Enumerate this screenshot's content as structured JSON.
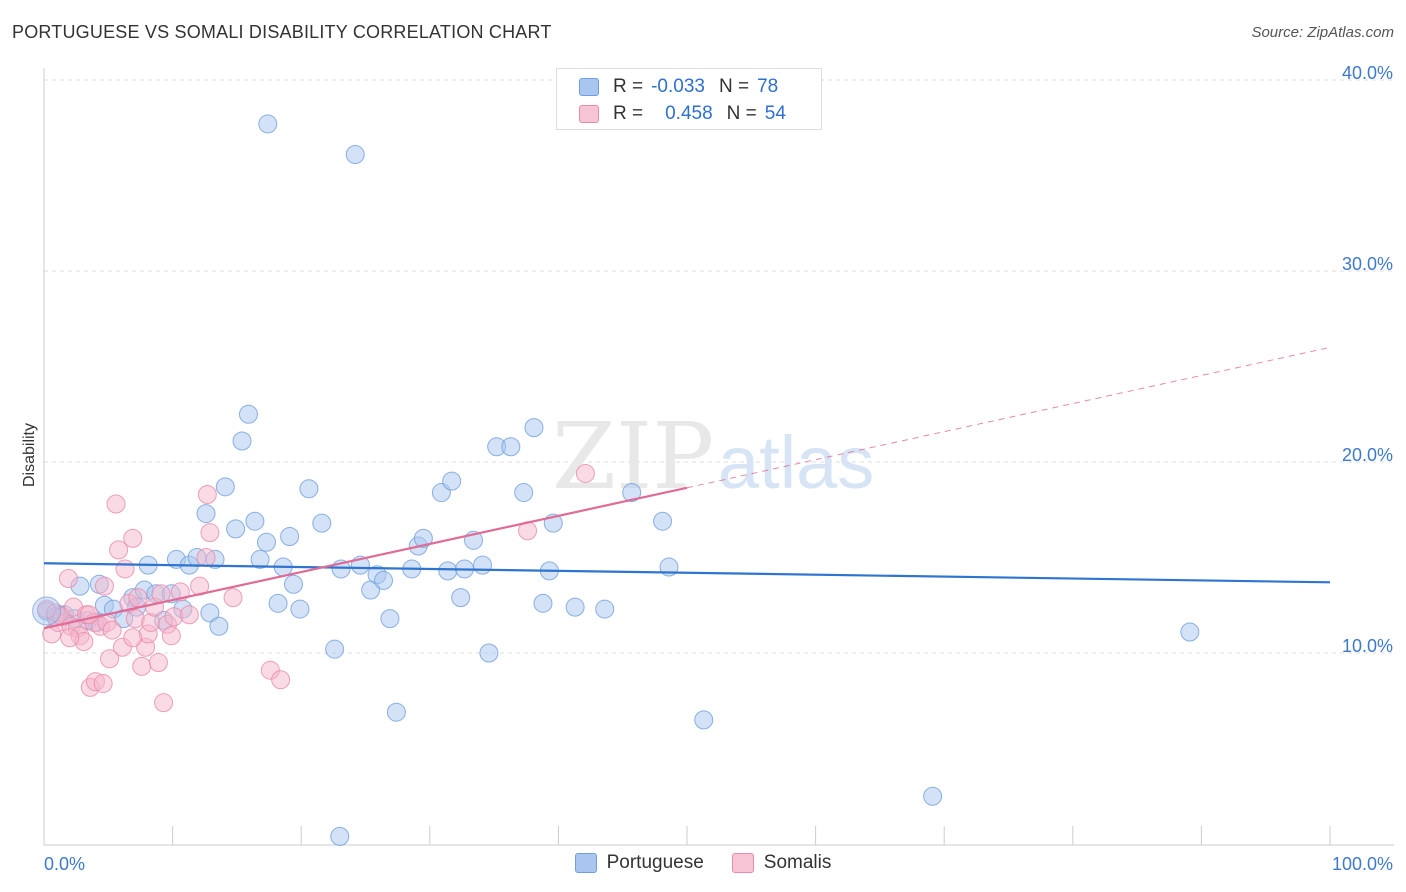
{
  "title": "PORTUGUESE VS SOMALI DISABILITY CORRELATION CHART",
  "source": "Source: ZipAtlas.com",
  "watermark": {
    "zip": "ZIP",
    "atlas": "atlas"
  },
  "legend": {
    "rows": [
      {
        "r_label": "R =",
        "r_value": "-0.033",
        "n_label": "N =",
        "n_value": "78"
      },
      {
        "r_label": "R =",
        "r_value": "0.458",
        "n_label": "N =",
        "n_value": "54"
      }
    ]
  },
  "colors": {
    "portuguese_fill": "#a8c6ef",
    "portuguese_stroke": "#6f9fdc",
    "portuguese_line": "#2f74d0",
    "somali_fill": "#f6b6cc",
    "somali_stroke": "#e98aaa",
    "somali_line": "#e06b95",
    "axis_text": "#3d79cc",
    "grid": "#dddddd"
  },
  "chart_data": {
    "type": "scatter",
    "title": "PORTUGUESE VS SOMALI DISABILITY CORRELATION CHART",
    "xlabel": "",
    "ylabel": "Disability",
    "xlim": [
      0,
      100
    ],
    "ylim": [
      0,
      42
    ],
    "x_tick_labels": [
      "0.0%",
      "100.0%"
    ],
    "y_ticks": [
      10,
      20,
      30,
      40
    ],
    "y_tick_labels": [
      "10.0%",
      "20.0%",
      "30.0%",
      "40.0%"
    ],
    "grid": true,
    "legend_position": "top-center",
    "series": [
      {
        "name": "Portuguese",
        "trend": {
          "x": [
            0,
            100
          ],
          "y": [
            14.7,
            13.7
          ],
          "dashed_from": null
        },
        "points": [
          [
            0.2,
            12.2
          ],
          [
            0.9,
            11.9
          ],
          [
            1.6,
            12.0
          ],
          [
            2.4,
            11.8
          ],
          [
            2.8,
            13.5
          ],
          [
            3.4,
            11.7
          ],
          [
            4.1,
            11.6
          ],
          [
            4.3,
            13.6
          ],
          [
            4.7,
            12.5
          ],
          [
            5.4,
            12.3
          ],
          [
            6.2,
            11.8
          ],
          [
            6.9,
            12.9
          ],
          [
            7.2,
            12.4
          ],
          [
            7.8,
            13.3
          ],
          [
            8.1,
            14.6
          ],
          [
            8.7,
            13.1
          ],
          [
            9.3,
            11.7
          ],
          [
            9.9,
            13.1
          ],
          [
            10.3,
            14.9
          ],
          [
            10.8,
            12.3
          ],
          [
            11.3,
            14.6
          ],
          [
            11.9,
            15.0
          ],
          [
            12.6,
            17.3
          ],
          [
            12.9,
            12.1
          ],
          [
            13.6,
            11.4
          ],
          [
            13.3,
            14.9
          ],
          [
            14.1,
            18.7
          ],
          [
            14.9,
            16.5
          ],
          [
            15.4,
            21.1
          ],
          [
            15.9,
            22.5
          ],
          [
            16.4,
            16.9
          ],
          [
            16.8,
            14.9
          ],
          [
            17.3,
            15.8
          ],
          [
            17.4,
            37.7
          ],
          [
            18.2,
            12.6
          ],
          [
            18.6,
            14.5
          ],
          [
            19.1,
            16.1
          ],
          [
            19.4,
            13.6
          ],
          [
            19.9,
            12.3
          ],
          [
            20.6,
            18.6
          ],
          [
            21.6,
            16.8
          ],
          [
            22.6,
            10.2
          ],
          [
            23.1,
            14.4
          ],
          [
            23.0,
            0.4
          ],
          [
            24.2,
            36.1
          ],
          [
            24.6,
            14.6
          ],
          [
            25.4,
            13.3
          ],
          [
            25.9,
            14.1
          ],
          [
            26.4,
            13.8
          ],
          [
            26.9,
            11.8
          ],
          [
            27.4,
            6.9
          ],
          [
            28.6,
            14.4
          ],
          [
            29.1,
            15.6
          ],
          [
            29.5,
            16.0
          ],
          [
            30.9,
            18.4
          ],
          [
            31.4,
            14.3
          ],
          [
            31.7,
            19.0
          ],
          [
            32.4,
            12.9
          ],
          [
            32.7,
            14.4
          ],
          [
            33.4,
            15.9
          ],
          [
            34.1,
            14.6
          ],
          [
            34.6,
            10.0
          ],
          [
            35.2,
            20.8
          ],
          [
            36.3,
            20.8
          ],
          [
            37.3,
            18.4
          ],
          [
            38.1,
            21.8
          ],
          [
            38.8,
            12.6
          ],
          [
            39.3,
            14.3
          ],
          [
            39.6,
            16.8
          ],
          [
            41.3,
            12.4
          ],
          [
            43.6,
            12.3
          ],
          [
            45.7,
            18.4
          ],
          [
            48.1,
            16.9
          ],
          [
            48.6,
            14.5
          ],
          [
            51.3,
            6.5
          ],
          [
            69.1,
            2.5
          ],
          [
            89.1,
            11.1
          ],
          [
            1.2,
            12.0
          ]
        ]
      },
      {
        "name": "Somalis",
        "trend": {
          "x": [
            0,
            100
          ],
          "y": [
            11.3,
            26.0
          ],
          "dashed_from": 50
        },
        "points": [
          [
            0.2,
            12.3
          ],
          [
            0.6,
            11.0
          ],
          [
            0.9,
            12.1
          ],
          [
            1.1,
            11.6
          ],
          [
            1.4,
            11.9
          ],
          [
            1.9,
            13.9
          ],
          [
            2.1,
            11.4
          ],
          [
            2.3,
            12.4
          ],
          [
            2.6,
            11.3
          ],
          [
            2.8,
            10.9
          ],
          [
            3.1,
            10.6
          ],
          [
            3.3,
            12.0
          ],
          [
            3.6,
            8.2
          ],
          [
            3.9,
            11.6
          ],
          [
            4.0,
            8.5
          ],
          [
            4.4,
            11.4
          ],
          [
            4.6,
            8.4
          ],
          [
            4.7,
            13.5
          ],
          [
            4.9,
            11.6
          ],
          [
            5.1,
            9.7
          ],
          [
            5.3,
            11.2
          ],
          [
            5.6,
            17.8
          ],
          [
            5.8,
            15.4
          ],
          [
            6.1,
            10.3
          ],
          [
            6.3,
            14.4
          ],
          [
            6.6,
            12.6
          ],
          [
            6.9,
            16.0
          ],
          [
            7.1,
            11.8
          ],
          [
            7.3,
            12.9
          ],
          [
            7.6,
            9.3
          ],
          [
            7.9,
            10.3
          ],
          [
            8.1,
            11.0
          ],
          [
            8.3,
            11.6
          ],
          [
            8.6,
            12.4
          ],
          [
            8.9,
            9.5
          ],
          [
            9.1,
            13.1
          ],
          [
            9.3,
            7.4
          ],
          [
            9.6,
            11.5
          ],
          [
            9.9,
            10.9
          ],
          [
            10.1,
            11.9
          ],
          [
            10.6,
            13.2
          ],
          [
            11.3,
            12.0
          ],
          [
            12.1,
            13.5
          ],
          [
            12.6,
            15.0
          ],
          [
            12.9,
            16.3
          ],
          [
            12.7,
            18.3
          ],
          [
            14.7,
            12.9
          ],
          [
            17.6,
            9.1
          ],
          [
            18.4,
            8.6
          ],
          [
            37.6,
            16.4
          ],
          [
            42.1,
            19.4
          ],
          [
            2.0,
            10.8
          ],
          [
            6.9,
            10.8
          ],
          [
            3.5,
            12.0
          ]
        ]
      }
    ]
  }
}
